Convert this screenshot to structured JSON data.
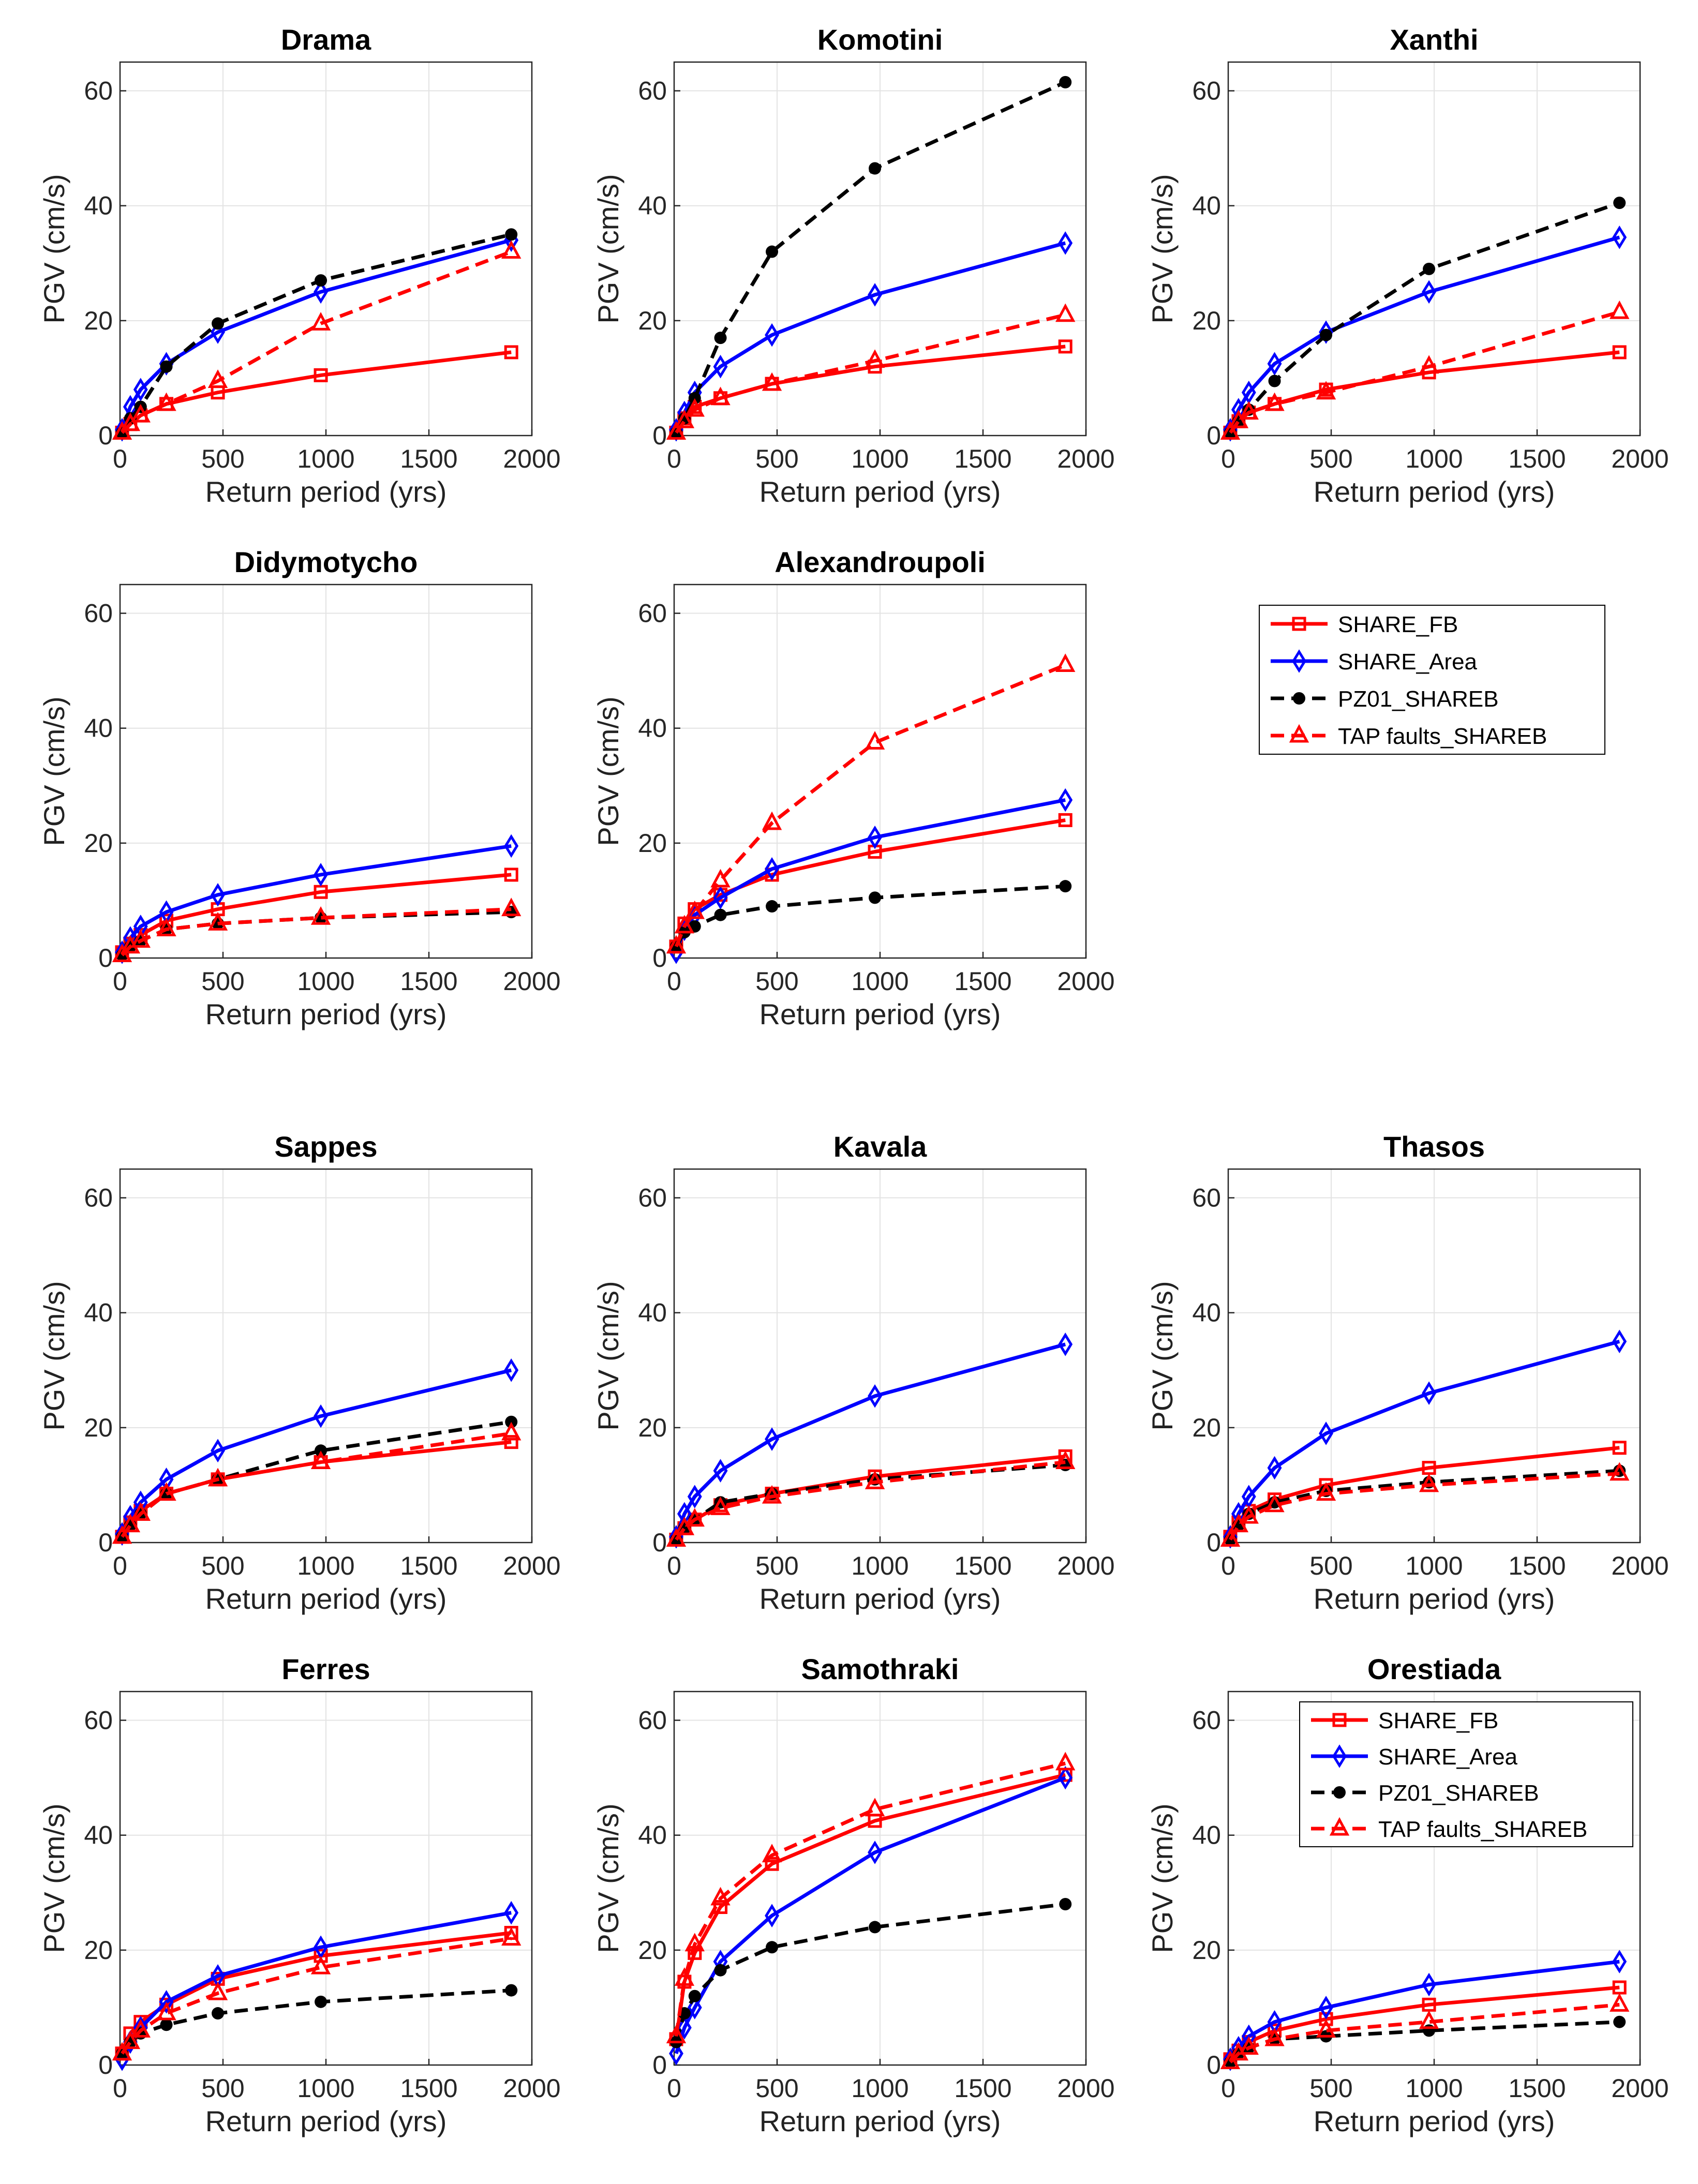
{
  "x_ticks": [
    "0",
    "500",
    "1000",
    "1500",
    "2000"
  ],
  "y_ticks": [
    "0",
    "20",
    "40",
    "60"
  ],
  "legend_entries": [
    "SHARE_FB",
    "SHARE_Area",
    "PZ01_SHAREB",
    "TAP faults_SHAREB"
  ],
  "series_styles": [
    {
      "name": "SHARE_FB",
      "color": "#ff0000",
      "dash": "solid",
      "marker": "square"
    },
    {
      "name": "SHARE_Area",
      "color": "#0000ff",
      "dash": "solid",
      "marker": "diamond"
    },
    {
      "name": "PZ01_SHAREB",
      "color": "#000000",
      "dash": "dashed",
      "marker": "filled-circle"
    },
    {
      "name": "TAP faults_SHAREB",
      "color": "#ff0000",
      "dash": "dashed",
      "marker": "triangle"
    }
  ],
  "chart_data": [
    {
      "type": "line",
      "title": "Drama",
      "xlabel": "Return period (yrs)",
      "ylabel": "PGV (cm/s)",
      "xlim": [
        0,
        2000
      ],
      "ylim": [
        0,
        65
      ],
      "grid": true,
      "x": [
        10,
        50,
        100,
        225,
        475,
        975,
        1900
      ],
      "series": [
        {
          "name": "SHARE_FB",
          "values": [
            0.5,
            2,
            3.5,
            5.5,
            7.5,
            10.5,
            14.5
          ]
        },
        {
          "name": "SHARE_Area",
          "values": [
            1,
            5,
            8,
            12.5,
            18,
            25,
            34
          ]
        },
        {
          "name": "PZ01_SHAREB",
          "values": [
            0.5,
            3,
            5,
            12,
            19.5,
            27,
            35
          ]
        },
        {
          "name": "TAP faults_SHAREB",
          "values": [
            0.5,
            2,
            3.5,
            5.5,
            9.5,
            19.5,
            32
          ]
        }
      ]
    },
    {
      "type": "line",
      "title": "Komotini",
      "xlabel": "Return period (yrs)",
      "ylabel": "PGV (cm/s)",
      "xlim": [
        0,
        2000
      ],
      "ylim": [
        0,
        65
      ],
      "grid": true,
      "x": [
        10,
        50,
        100,
        225,
        475,
        975,
        1900
      ],
      "series": [
        {
          "name": "SHARE_FB",
          "values": [
            0.5,
            3,
            5,
            6.5,
            9,
            12,
            15.5
          ]
        },
        {
          "name": "SHARE_Area",
          "values": [
            1,
            4,
            7.5,
            12,
            17.5,
            24.5,
            33.5
          ]
        },
        {
          "name": "PZ01_SHAREB",
          "values": [
            0.5,
            3,
            6.5,
            17,
            32,
            46.5,
            61.5
          ]
        },
        {
          "name": "TAP faults_SHAREB",
          "values": [
            0.5,
            2.5,
            4.5,
            6.5,
            9,
            13,
            21
          ]
        }
      ]
    },
    {
      "type": "line",
      "title": "Xanthi",
      "xlabel": "Return period (yrs)",
      "ylabel": "PGV (cm/s)",
      "xlim": [
        0,
        2000
      ],
      "ylim": [
        0,
        65
      ],
      "grid": true,
      "x": [
        10,
        50,
        100,
        225,
        475,
        975,
        1900
      ],
      "series": [
        {
          "name": "SHARE_FB",
          "values": [
            0.5,
            2.5,
            4,
            5.5,
            8,
            11,
            14.5
          ]
        },
        {
          "name": "SHARE_Area",
          "values": [
            1,
            4.5,
            7.5,
            12.5,
            18,
            25,
            34.5
          ]
        },
        {
          "name": "PZ01_SHAREB",
          "values": [
            0.5,
            2.5,
            4.5,
            9.5,
            17.5,
            29,
            40.5
          ]
        },
        {
          "name": "TAP faults_SHAREB",
          "values": [
            0.5,
            2.5,
            4,
            5.5,
            7.5,
            12,
            21.5
          ]
        }
      ]
    },
    {
      "type": "line",
      "title": "Didymotycho",
      "xlabel": "Return period (yrs)",
      "ylabel": "PGV (cm/s)",
      "xlim": [
        0,
        2000
      ],
      "ylim": [
        0,
        65
      ],
      "grid": true,
      "x": [
        10,
        50,
        100,
        225,
        475,
        975,
        1900
      ],
      "series": [
        {
          "name": "SHARE_FB",
          "values": [
            1,
            2.5,
            4,
            6.5,
            8.5,
            11.5,
            14.5
          ]
        },
        {
          "name": "SHARE_Area",
          "values": [
            1,
            3.5,
            5.5,
            8,
            11,
            14.5,
            19.5
          ]
        },
        {
          "name": "PZ01_SHAREB",
          "values": [
            0.5,
            2,
            3,
            5,
            6,
            7,
            8
          ]
        },
        {
          "name": "TAP faults_SHAREB",
          "values": [
            0.5,
            2,
            3,
            5,
            6,
            7,
            8.5
          ]
        }
      ]
    },
    {
      "type": "line",
      "title": "Alexandroupoli",
      "xlabel": "Return period (yrs)",
      "ylabel": "PGV (cm/s)",
      "xlim": [
        0,
        2000
      ],
      "ylim": [
        0,
        65
      ],
      "grid": true,
      "x": [
        10,
        50,
        100,
        225,
        475,
        975,
        1900
      ],
      "series": [
        {
          "name": "SHARE_FB",
          "values": [
            2,
            6,
            8.5,
            11,
            14.5,
            18.5,
            24
          ]
        },
        {
          "name": "SHARE_Area",
          "values": [
            1,
            5,
            7.5,
            10.5,
            15.5,
            21,
            27.5
          ]
        },
        {
          "name": "PZ01_SHAREB",
          "values": [
            2,
            4.5,
            5.5,
            7.5,
            9,
            10.5,
            12.5
          ]
        },
        {
          "name": "TAP faults_SHAREB",
          "values": [
            2,
            5.5,
            8,
            13.5,
            23.5,
            37.5,
            51
          ]
        }
      ]
    },
    {
      "type": "line",
      "title": "Sappes",
      "xlabel": "Return period (yrs)",
      "ylabel": "PGV (cm/s)",
      "xlim": [
        0,
        2000
      ],
      "ylim": [
        0,
        65
      ],
      "grid": true,
      "x": [
        10,
        50,
        100,
        225,
        475,
        975,
        1900
      ],
      "series": [
        {
          "name": "SHARE_FB",
          "values": [
            1,
            3.5,
            5.5,
            8.5,
            11,
            14,
            17.5
          ]
        },
        {
          "name": "SHARE_Area",
          "values": [
            1.5,
            4.5,
            7,
            11,
            16,
            22,
            30
          ]
        },
        {
          "name": "PZ01_SHAREB",
          "values": [
            1,
            3,
            5,
            8.5,
            11,
            16,
            21
          ]
        },
        {
          "name": "TAP faults_SHAREB",
          "values": [
            1,
            3,
            5,
            8.5,
            11,
            14,
            19
          ]
        }
      ]
    },
    {
      "type": "line",
      "title": "Kavala",
      "xlabel": "Return period (yrs)",
      "ylabel": "PGV (cm/s)",
      "xlim": [
        0,
        2000
      ],
      "ylim": [
        0,
        65
      ],
      "grid": true,
      "x": [
        10,
        50,
        100,
        225,
        475,
        975,
        1900
      ],
      "series": [
        {
          "name": "SHARE_FB",
          "values": [
            0.5,
            2.5,
            4,
            6.5,
            8.5,
            11.5,
            15
          ]
        },
        {
          "name": "SHARE_Area",
          "values": [
            1,
            5,
            8,
            12.5,
            18,
            25.5,
            34.5
          ]
        },
        {
          "name": "PZ01_SHAREB",
          "values": [
            0.5,
            2.5,
            4,
            7,
            8.5,
            11,
            13.5
          ]
        },
        {
          "name": "TAP faults_SHAREB",
          "values": [
            0.5,
            2.5,
            4,
            6,
            8,
            10.5,
            14
          ]
        }
      ]
    },
    {
      "type": "line",
      "title": "Thasos",
      "xlabel": "Return period (yrs)",
      "ylabel": "PGV (cm/s)",
      "xlim": [
        0,
        2000
      ],
      "ylim": [
        0,
        65
      ],
      "grid": true,
      "x": [
        10,
        50,
        100,
        225,
        475,
        975,
        1900
      ],
      "series": [
        {
          "name": "SHARE_FB",
          "values": [
            1,
            3.5,
            5.5,
            7.5,
            10,
            13,
            16.5
          ]
        },
        {
          "name": "SHARE_Area",
          "values": [
            1,
            5,
            8,
            13,
            19,
            26,
            35
          ]
        },
        {
          "name": "PZ01_SHAREB",
          "values": [
            0.5,
            3,
            5,
            7,
            9,
            10.5,
            12.5
          ]
        },
        {
          "name": "TAP faults_SHAREB",
          "values": [
            0.5,
            3,
            4.5,
            6.5,
            8.5,
            10,
            12
          ]
        }
      ]
    },
    {
      "type": "line",
      "title": "Ferres",
      "xlabel": "Return period (yrs)",
      "ylabel": "PGV (cm/s)",
      "xlim": [
        0,
        2000
      ],
      "ylim": [
        0,
        65
      ],
      "grid": true,
      "x": [
        10,
        50,
        100,
        225,
        475,
        975,
        1900
      ],
      "series": [
        {
          "name": "SHARE_FB",
          "values": [
            2,
            5.5,
            7.5,
            10.5,
            15,
            19,
            23
          ]
        },
        {
          "name": "SHARE_Area",
          "values": [
            1,
            4,
            6.5,
            11,
            15.5,
            20.5,
            26.5
          ]
        },
        {
          "name": "PZ01_SHAREB",
          "values": [
            2,
            4,
            5.5,
            7,
            9,
            11,
            13
          ]
        },
        {
          "name": "TAP faults_SHAREB",
          "values": [
            2,
            4,
            6,
            9,
            12.5,
            17,
            22
          ]
        }
      ]
    },
    {
      "type": "line",
      "title": "Samothraki",
      "xlabel": "Return period (yrs)",
      "ylabel": "PGV (cm/s)",
      "xlim": [
        0,
        2000
      ],
      "ylim": [
        0,
        65
      ],
      "grid": true,
      "x": [
        10,
        50,
        100,
        225,
        475,
        975,
        1900
      ],
      "series": [
        {
          "name": "SHARE_FB",
          "values": [
            4.5,
            14.5,
            19.5,
            27.5,
            35,
            42.5,
            50.5
          ]
        },
        {
          "name": "SHARE_Area",
          "values": [
            2,
            6.5,
            10,
            18,
            26,
            37,
            50
          ]
        },
        {
          "name": "PZ01_SHAREB",
          "values": [
            4,
            9,
            12,
            16.5,
            20.5,
            24,
            28
          ]
        },
        {
          "name": "TAP faults_SHAREB",
          "values": [
            5,
            15,
            21,
            29,
            36.5,
            44.5,
            52.5
          ]
        }
      ]
    },
    {
      "type": "line",
      "title": "Orestiada",
      "xlabel": "Return period (yrs)",
      "ylabel": "PGV (cm/s)",
      "xlim": [
        0,
        2000
      ],
      "ylim": [
        0,
        65
      ],
      "grid": true,
      "x": [
        10,
        50,
        100,
        225,
        475,
        975,
        1900
      ],
      "series": [
        {
          "name": "SHARE_FB",
          "values": [
            1,
            2.5,
            4,
            6,
            8,
            10.5,
            13.5
          ]
        },
        {
          "name": "SHARE_Area",
          "values": [
            1,
            3,
            5,
            7.5,
            10,
            14,
            18
          ]
        },
        {
          "name": "PZ01_SHAREB",
          "values": [
            0.5,
            2,
            3,
            4.5,
            5,
            6,
            7.5
          ]
        },
        {
          "name": "TAP faults_SHAREB",
          "values": [
            0.5,
            2,
            3,
            4.5,
            6,
            7.5,
            10.5
          ]
        }
      ]
    }
  ]
}
